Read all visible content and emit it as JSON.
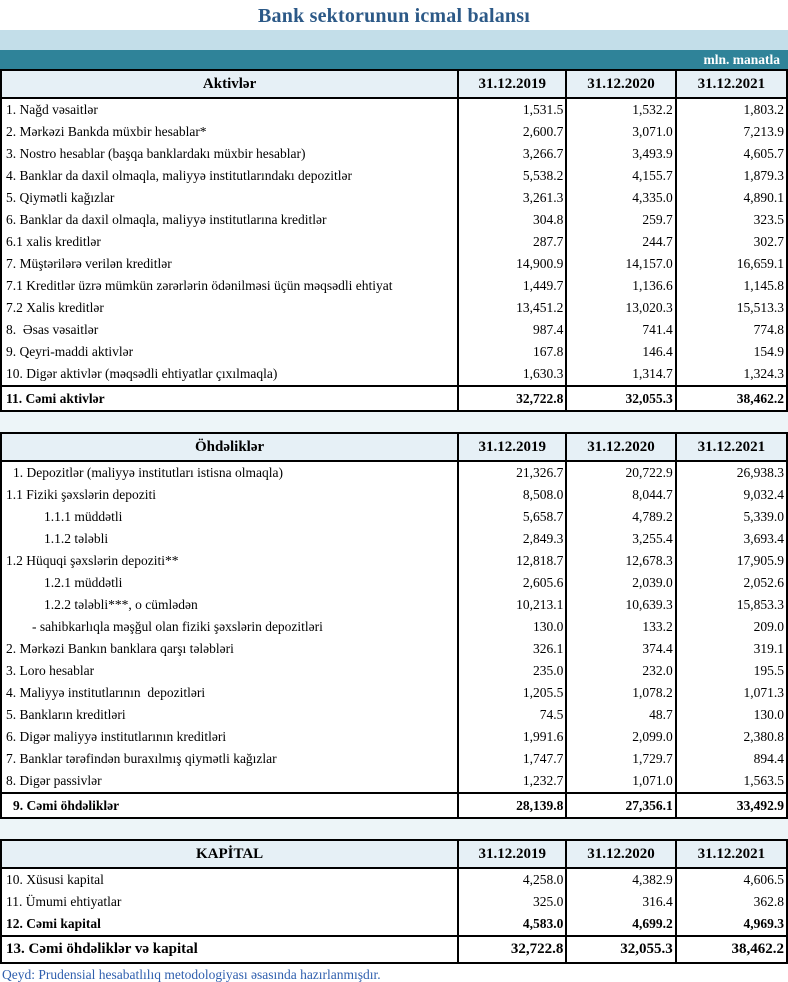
{
  "title": "Bank sektorunun icmal balansı",
  "unit_label": "mln. manatla",
  "columns": [
    "31.12.2019",
    "31.12.2020",
    "31.12.2021"
  ],
  "sections": [
    {
      "header": "Aktivlər",
      "rows": [
        {
          "label": "1. Nağd vəsaitlər",
          "values": [
            "1,531.5",
            "1,532.2",
            "1,803.2"
          ],
          "indent": 0
        },
        {
          "label": "2. Mərkəzi Bankda müxbir hesablar*",
          "values": [
            "2,600.7",
            "3,071.0",
            "7,213.9"
          ],
          "indent": 0
        },
        {
          "label": "3. Nostro hesablar (başqa banklardakı müxbir hesablar)",
          "values": [
            "3,266.7",
            "3,493.9",
            "4,605.7"
          ],
          "indent": 0
        },
        {
          "label": "4. Banklar da daxil olmaqla, maliyyə institutlarındakı depozitlər",
          "values": [
            "5,538.2",
            "4,155.7",
            "1,879.3"
          ],
          "indent": 0
        },
        {
          "label": "5. Qiymətli kağızlar",
          "values": [
            "3,261.3",
            "4,335.0",
            "4,890.1"
          ],
          "indent": 0
        },
        {
          "label": "6. Banklar da daxil olmaqla, maliyyə institutlarına kreditlər",
          "values": [
            "304.8",
            "259.7",
            "323.5"
          ],
          "indent": 0
        },
        {
          "label": "6.1 xalis kreditlər",
          "values": [
            "287.7",
            "244.7",
            "302.7"
          ],
          "indent": 0
        },
        {
          "label": "7. Müştərilərə verilən kreditlər",
          "values": [
            "14,900.9",
            "14,157.0",
            "16,659.1"
          ],
          "indent": 0
        },
        {
          "label": "7.1 Kreditlər üzrə mümkün zərərlərin ödənilməsi üçün məqsədli ehtiyat",
          "values": [
            "1,449.7",
            "1,136.6",
            "1,145.8"
          ],
          "indent": 0
        },
        {
          "label": "7.2 Xalis kreditlər",
          "values": [
            "13,451.2",
            "13,020.3",
            "15,513.3"
          ],
          "indent": 0
        },
        {
          "label": "8.  Əsas vəsaitlər",
          "values": [
            "987.4",
            "741.4",
            "774.8"
          ],
          "indent": 0
        },
        {
          "label": "9. Qeyri-maddi aktivlər",
          "values": [
            "167.8",
            "146.4",
            "154.9"
          ],
          "indent": 0
        },
        {
          "label": "10. Digər aktivlər (məqsədli ehtiyatlar çıxılmaqla)",
          "values": [
            "1,630.3",
            "1,314.7",
            "1,324.3"
          ],
          "indent": 0
        },
        {
          "label": "11. Cəmi aktivlər",
          "values": [
            "32,722.8",
            "32,055.3",
            "38,462.2"
          ],
          "indent": 0,
          "bold": true,
          "total": true
        }
      ]
    },
    {
      "header": "Öhdəliklər",
      "rows": [
        {
          "label": "1. Depozitlər (maliyyə institutları istisna olmaqla)",
          "values": [
            "21,326.7",
            "20,722.9",
            "26,938.3"
          ],
          "indent": 1
        },
        {
          "label": "1.1 Fiziki şəxslərin depoziti",
          "values": [
            "8,508.0",
            "8,044.7",
            "9,032.4"
          ],
          "indent": 0
        },
        {
          "label": "1.1.1 müddətli",
          "values": [
            "5,658.7",
            "4,789.2",
            "5,339.0"
          ],
          "indent": 3
        },
        {
          "label": "1.1.2 tələbli",
          "values": [
            "2,849.3",
            "3,255.4",
            "3,693.4"
          ],
          "indent": 3
        },
        {
          "label": "1.2 Hüquqi şəxslərin depoziti**",
          "values": [
            "12,818.7",
            "12,678.3",
            "17,905.9"
          ],
          "indent": 0
        },
        {
          "label": "1.2.1 müddətli",
          "values": [
            "2,605.6",
            "2,039.0",
            "2,052.6"
          ],
          "indent": 3
        },
        {
          "label": "1.2.2 tələbli***, o cümlədən",
          "values": [
            "10,213.1",
            "10,639.3",
            "15,853.3"
          ],
          "indent": 3
        },
        {
          "label": "- sahibkarlıqla məşğul olan fiziki şəxslərin depozitləri",
          "values": [
            "130.0",
            "133.2",
            "209.0"
          ],
          "indent": 2
        },
        {
          "label": "2. Mərkəzi Bankın banklara qarşı tələbləri",
          "values": [
            "326.1",
            "374.4",
            "319.1"
          ],
          "indent": 0
        },
        {
          "label": "3. Loro hesablar",
          "values": [
            "235.0",
            "232.0",
            "195.5"
          ],
          "indent": 0
        },
        {
          "label": "4. Maliyyə institutlarının  depozitləri",
          "values": [
            "1,205.5",
            "1,078.2",
            "1,071.3"
          ],
          "indent": 0
        },
        {
          "label": "5. Bankların kreditləri",
          "values": [
            "74.5",
            "48.7",
            "130.0"
          ],
          "indent": 0
        },
        {
          "label": "6. Digər maliyyə institutlarının kreditləri",
          "values": [
            "1,991.6",
            "2,099.0",
            "2,380.8"
          ],
          "indent": 0
        },
        {
          "label": "7. Banklar tərəfindən buraxılmış qiymətli kağızlar",
          "values": [
            "1,747.7",
            "1,729.7",
            "894.4"
          ],
          "indent": 0
        },
        {
          "label": "8. Digər passivlər",
          "values": [
            "1,232.7",
            "1,071.0",
            "1,563.5"
          ],
          "indent": 0
        },
        {
          "label": "9. Cəmi öhdəliklər",
          "values": [
            "28,139.8",
            "27,356.1",
            "33,492.9"
          ],
          "indent": 1,
          "bold": true,
          "total": true
        }
      ]
    },
    {
      "header": "KAPİTAL",
      "rows": [
        {
          "label": "10. Xüsusi kapital",
          "values": [
            "4,258.0",
            "4,382.9",
            "4,606.5"
          ],
          "indent": 0
        },
        {
          "label": "11. Ümumi ehtiyatlar",
          "values": [
            "325.0",
            "316.4",
            "362.8"
          ],
          "indent": 0
        },
        {
          "label": "12. Cəmi kapital",
          "values": [
            "4,583.0",
            "4,699.2",
            "4,969.3"
          ],
          "indent": 0,
          "bold": true
        },
        {
          "label": "13. Cəmi öhdəliklər və kapital",
          "values": [
            "32,722.8",
            "32,055.3",
            "38,462.2"
          ],
          "indent": 0,
          "bold": true,
          "total": true,
          "grand": true
        }
      ]
    }
  ],
  "note": "Qeyd: Prudensial hesabatlılıq metodologiyası əsasında hazırlanmışdır."
}
